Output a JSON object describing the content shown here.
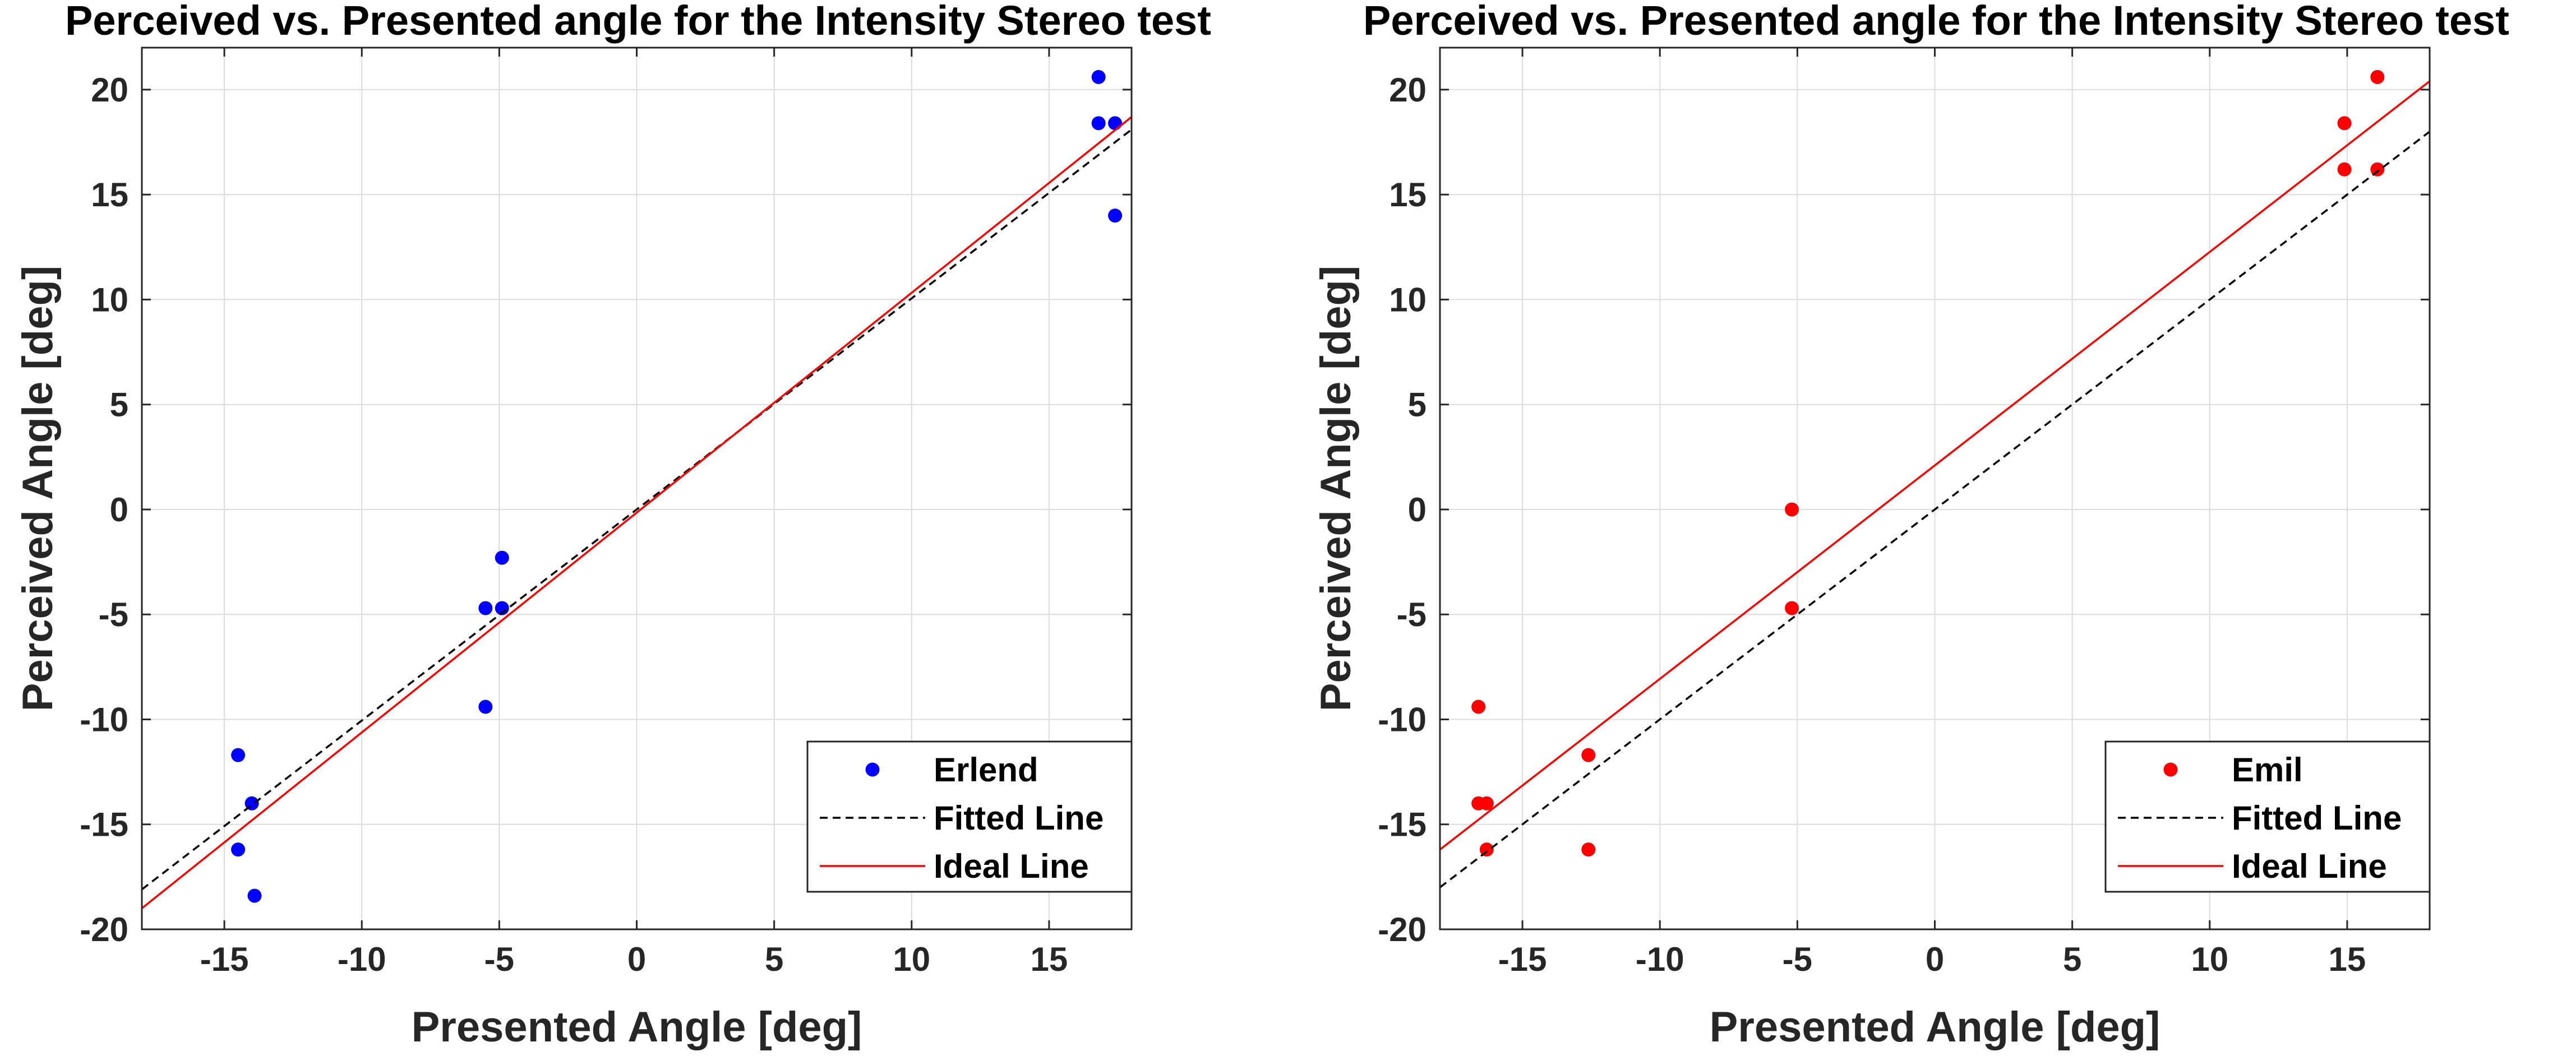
{
  "chart_data": [
    {
      "type": "scatter",
      "title": "Perceived vs. Presented angle for the Intensity Stereo test",
      "xlabel": "Presented Angle [deg]",
      "ylabel": "Perceived Angle [deg]",
      "xlim": [
        -18,
        18
      ],
      "ylim": [
        -20,
        22
      ],
      "xticks": [
        -15,
        -10,
        -5,
        0,
        5,
        10,
        15
      ],
      "yticks": [
        -20,
        -15,
        -10,
        -5,
        0,
        5,
        10,
        15,
        20
      ],
      "grid": true,
      "legend_position": "bottom-right",
      "series": [
        {
          "name": "Erlend",
          "kind": "points",
          "color": "#0000ff",
          "points": [
            [
              -14.5,
              -11.7
            ],
            [
              -14.5,
              -16.2
            ],
            [
              -14.0,
              -14.0
            ],
            [
              -13.9,
              -18.4
            ],
            [
              -5.5,
              -4.7
            ],
            [
              -5.5,
              -9.4
            ],
            [
              -4.9,
              -2.3
            ],
            [
              -4.9,
              -4.7
            ],
            [
              16.8,
              20.6
            ],
            [
              16.8,
              18.4
            ],
            [
              17.4,
              18.4
            ],
            [
              17.4,
              14.0
            ]
          ]
        },
        {
          "name": "Fitted Line",
          "kind": "line",
          "color": "#000000",
          "dashed": true,
          "points": [
            [
              -18,
              -18.1
            ],
            [
              18,
              18.1
            ]
          ]
        },
        {
          "name": "Ideal Line",
          "kind": "line",
          "color": "#ff0000",
          "dashed": false,
          "points": [
            [
              -18,
              -19.0
            ],
            [
              18,
              18.7
            ]
          ]
        }
      ]
    },
    {
      "type": "scatter",
      "title": "Perceived vs. Presented angle for the Intensity Stereo test",
      "xlabel": "Presented Angle [deg]",
      "ylabel": "Perceived Angle [deg]",
      "xlim": [
        -18,
        18
      ],
      "ylim": [
        -20,
        22
      ],
      "xticks": [
        -15,
        -10,
        -5,
        0,
        5,
        10,
        15
      ],
      "yticks": [
        -20,
        -15,
        -10,
        -5,
        0,
        5,
        10,
        15,
        20
      ],
      "grid": true,
      "legend_position": "bottom-right",
      "series": [
        {
          "name": "Emil",
          "kind": "points",
          "color": "#ff0000",
          "points": [
            [
              -16.6,
              -9.4
            ],
            [
              -16.6,
              -14.0
            ],
            [
              -16.3,
              -14.0
            ],
            [
              -16.3,
              -16.2
            ],
            [
              -12.6,
              -11.7
            ],
            [
              -12.6,
              -16.2
            ],
            [
              -5.2,
              0.0
            ],
            [
              -5.2,
              -4.7
            ],
            [
              14.9,
              18.4
            ],
            [
              14.9,
              16.2
            ],
            [
              16.1,
              20.6
            ],
            [
              16.1,
              16.2
            ]
          ]
        },
        {
          "name": "Fitted Line",
          "kind": "line",
          "color": "#000000",
          "dashed": true,
          "points": [
            [
              -18,
              -18.0
            ],
            [
              18,
              18.0
            ]
          ]
        },
        {
          "name": "Ideal Line",
          "kind": "line",
          "color": "#ff0000",
          "dashed": false,
          "points": [
            [
              -18,
              -16.2
            ],
            [
              18,
              20.4
            ]
          ]
        }
      ]
    }
  ]
}
